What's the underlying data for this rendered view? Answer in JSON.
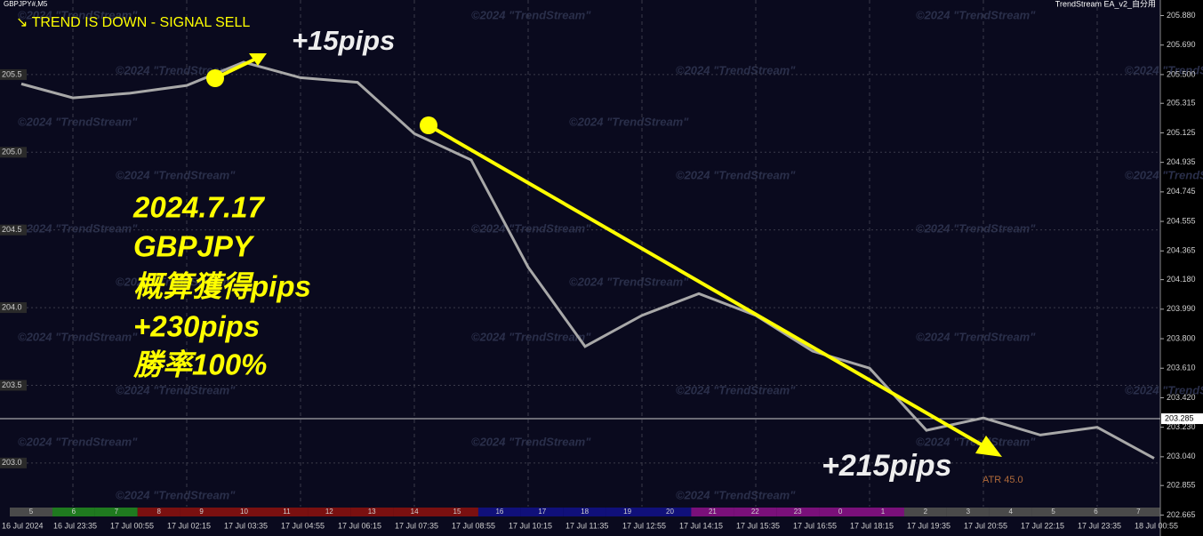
{
  "chart_data": {
    "type": "line",
    "header": "GBPJPY#,M5",
    "indicator_name": "TrendStream EA_v2_自分用",
    "signal": "↘ TREND IS DOWN - SIGNAL SELL",
    "watermark": "©2024 \"TrendStream\"",
    "annotations": [
      "+15pips",
      "+215pips",
      "ATR 45.0"
    ],
    "summary": [
      "2024.7.17",
      "GBPJPY",
      "概算獲得pips",
      "+230pips",
      "勝率100%"
    ],
    "categories": [
      "16 Jul 2024",
      "16 Jul 23:35",
      "17 Jul 00:55",
      "17 Jul 02:15",
      "17 Jul 03:35",
      "17 Jul 04:55",
      "17 Jul 06:15",
      "17 Jul 07:35",
      "17 Jul 08:55",
      "17 Jul 10:15",
      "17 Jul 11:35",
      "17 Jul 12:55",
      "17 Jul 14:15",
      "17 Jul 15:35",
      "17 Jul 16:55",
      "17 Jul 18:15",
      "17 Jul 19:35",
      "17 Jul 20:55",
      "17 Jul 22:15",
      "17 Jul 23:35",
      "18 Jul 00:55"
    ],
    "values": [
      205.44,
      205.35,
      205.38,
      205.43,
      205.58,
      205.48,
      205.45,
      205.12,
      204.95,
      204.26,
      203.75,
      203.95,
      204.09,
      203.95,
      203.72,
      203.61,
      203.21,
      203.29,
      203.18,
      203.23,
      203.03
    ],
    "color": "#a8a8a8",
    "ylim": [
      202.53,
      205.98
    ],
    "yticks": [
      {
        "value": 205.5,
        "label": "205.5"
      },
      {
        "value": 205,
        "label": "205.0"
      },
      {
        "value": 204.5,
        "label": "204.5"
      },
      {
        "value": 204,
        "label": "204.0"
      },
      {
        "value": 203.5,
        "label": "203.5"
      },
      {
        "value": 203,
        "label": "203.0"
      }
    ],
    "y2ticks": [
      {
        "value": 205.88,
        "label": "205.880"
      },
      {
        "value": 205.69,
        "label": "205.690"
      },
      {
        "value": 205.5,
        "label": "205.500"
      },
      {
        "value": 205.315,
        "label": "205.315"
      },
      {
        "value": 205.125,
        "label": "205.125"
      },
      {
        "value": 204.935,
        "label": "204.935"
      },
      {
        "value": 204.745,
        "label": "204.745"
      },
      {
        "value": 204.555,
        "label": "204.555"
      },
      {
        "value": 204.365,
        "label": "204.365"
      },
      {
        "value": 204.18,
        "label": "204.180"
      },
      {
        "value": 203.99,
        "label": "203.990"
      },
      {
        "value": 203.8,
        "label": "203.800"
      },
      {
        "value": 203.61,
        "label": "203.610"
      },
      {
        "value": 203.42,
        "label": "203.420"
      },
      {
        "value": 203.23,
        "label": "203.230"
      },
      {
        "value": 203.04,
        "label": "203.040"
      },
      {
        "value": 202.855,
        "label": "202.855"
      },
      {
        "value": 202.665,
        "label": "202.665"
      }
    ],
    "current_price": {
      "value": 203.285,
      "label": "203.285"
    },
    "grid": true,
    "sessions": [
      {
        "label": "5",
        "color": "#4a4a4a"
      },
      {
        "label": "6",
        "color": "#1f7a1f"
      },
      {
        "label": "7",
        "color": "#1f7a1f"
      },
      {
        "label": "8",
        "color": "#7a1010"
      },
      {
        "label": "9",
        "color": "#7a1010"
      },
      {
        "label": "10",
        "color": "#7a1010"
      },
      {
        "label": "11",
        "color": "#7a1010"
      },
      {
        "label": "12",
        "color": "#7a1010"
      },
      {
        "label": "13",
        "color": "#7a1010"
      },
      {
        "label": "14",
        "color": "#7a1010"
      },
      {
        "label": "15",
        "color": "#7a1010"
      },
      {
        "label": "16",
        "color": "#10107a"
      },
      {
        "label": "17",
        "color": "#10107a"
      },
      {
        "label": "18",
        "color": "#10107a"
      },
      {
        "label": "19",
        "color": "#10107a"
      },
      {
        "label": "20",
        "color": "#10107a"
      },
      {
        "label": "21",
        "color": "#7a107a"
      },
      {
        "label": "22",
        "color": "#7a107a"
      },
      {
        "label": "23",
        "color": "#7a107a"
      },
      {
        "label": "0",
        "color": "#7a107a"
      },
      {
        "label": "1",
        "color": "#7a107a"
      },
      {
        "label": "2",
        "color": "#4a4a4a"
      },
      {
        "label": "3",
        "color": "#4a4a4a"
      },
      {
        "label": "4",
        "color": "#4a4a4a"
      },
      {
        "label": "5",
        "color": "#4a4a4a"
      },
      {
        "label": "6",
        "color": "#4a4a4a"
      },
      {
        "label": "7",
        "color": "#4a4a4a"
      }
    ]
  }
}
